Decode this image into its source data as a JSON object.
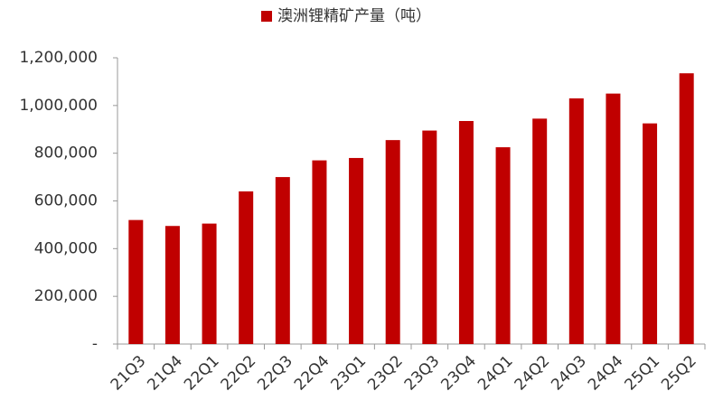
{
  "chart_data": {
    "type": "bar",
    "legend": "澳洲锂精矿产量（吨）",
    "categories": [
      "21Q3",
      "21Q4",
      "22Q1",
      "22Q2",
      "22Q3",
      "22Q4",
      "23Q1",
      "23Q2",
      "23Q3",
      "23Q4",
      "24Q1",
      "24Q2",
      "24Q3",
      "24Q4",
      "25Q1",
      "25Q2"
    ],
    "values": [
      520000,
      495000,
      505000,
      640000,
      700000,
      770000,
      780000,
      855000,
      895000,
      935000,
      825000,
      945000,
      1030000,
      1050000,
      925000,
      1135000
    ],
    "color": "#c00000",
    "ylim": [
      0,
      1200000
    ],
    "yticks": [
      {
        "value": 0,
        "label": "-"
      },
      {
        "value": 200000,
        "label": "200,000"
      },
      {
        "value": 400000,
        "label": "400,000"
      },
      {
        "value": 600000,
        "label": "600,000"
      },
      {
        "value": 800000,
        "label": "800,000"
      },
      {
        "value": 1000000,
        "label": "1,000,000"
      },
      {
        "value": 1200000,
        "label": "1,200,000"
      }
    ],
    "legend_position": "top",
    "grid": false
  }
}
